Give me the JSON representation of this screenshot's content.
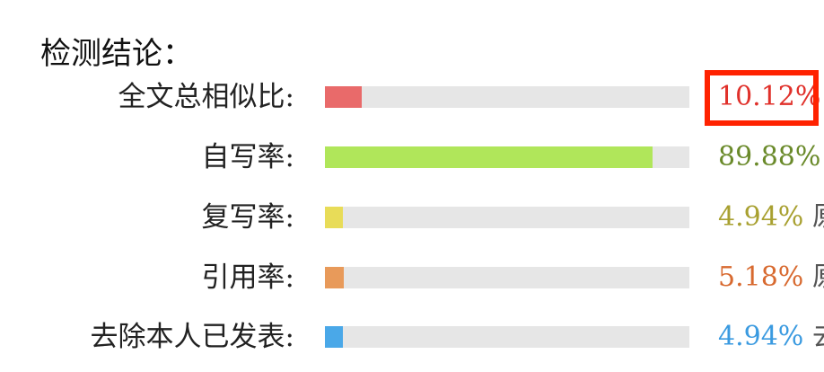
{
  "title": "检测结论：",
  "rows": [
    {
      "label": "全文总相似比:",
      "value": "10.12%",
      "percent": 10.12,
      "color": "#e96a6a",
      "text_color": "#e0302a",
      "extra": ""
    },
    {
      "label": "自写率:",
      "value": "89.88%",
      "percent": 89.88,
      "color": "#b0e65a",
      "text_color": "#6a8a2a",
      "extra": ""
    },
    {
      "label": "复写率:",
      "value": "4.94%",
      "percent": 4.94,
      "color": "#e8dc58",
      "text_color": "#a8a030",
      "extra": "原"
    },
    {
      "label": "引用率:",
      "value": "5.18%",
      "percent": 5.18,
      "color": "#e89a5a",
      "text_color": "#d86a30",
      "extra": "原"
    },
    {
      "label": "去除本人已发表:",
      "value": "4.94%",
      "percent": 4.94,
      "color": "#4aa8e8",
      "text_color": "#3a9ae0",
      "extra": "去"
    }
  ],
  "highlight_color": "#ff2200"
}
